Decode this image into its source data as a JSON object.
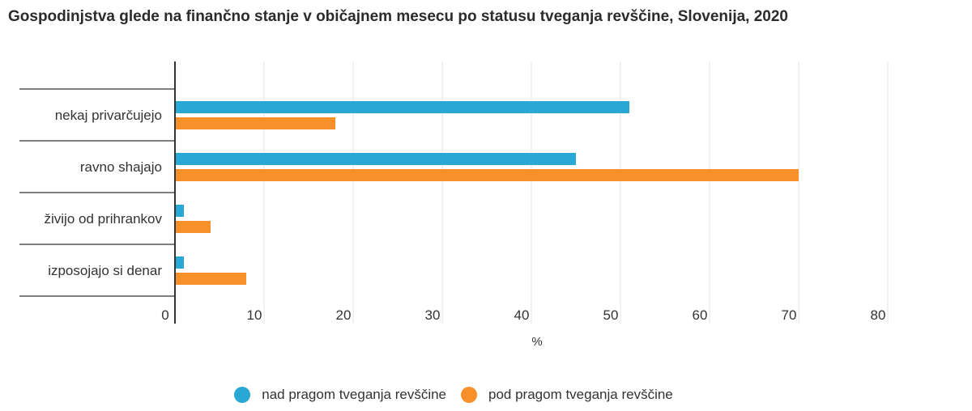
{
  "chart_data": {
    "type": "bar",
    "orientation": "horizontal",
    "title": "Gospodinjstva glede na finančno stanje v običajnem mesecu po statusu tveganja revščine, Slovenija, 2020",
    "xlabel": "%",
    "ylabel": "",
    "xlim": [
      0,
      80
    ],
    "xticks": [
      "0",
      "10",
      "20",
      "30",
      "40",
      "50",
      "60",
      "70",
      "80"
    ],
    "categories": [
      "nekaj privarčujejo",
      "ravno shajajo",
      "živijo od prihrankov",
      "izposojajo si denar"
    ],
    "series": [
      {
        "name": "nad pragom tveganja revščine",
        "color": "#29a8d6",
        "values": [
          51,
          45,
          1,
          1
        ]
      },
      {
        "name": "pod pragom tveganja revščine",
        "color": "#f7902b",
        "values": [
          18,
          70,
          4,
          8
        ]
      }
    ],
    "grid": true,
    "legend": "bottom-center"
  }
}
